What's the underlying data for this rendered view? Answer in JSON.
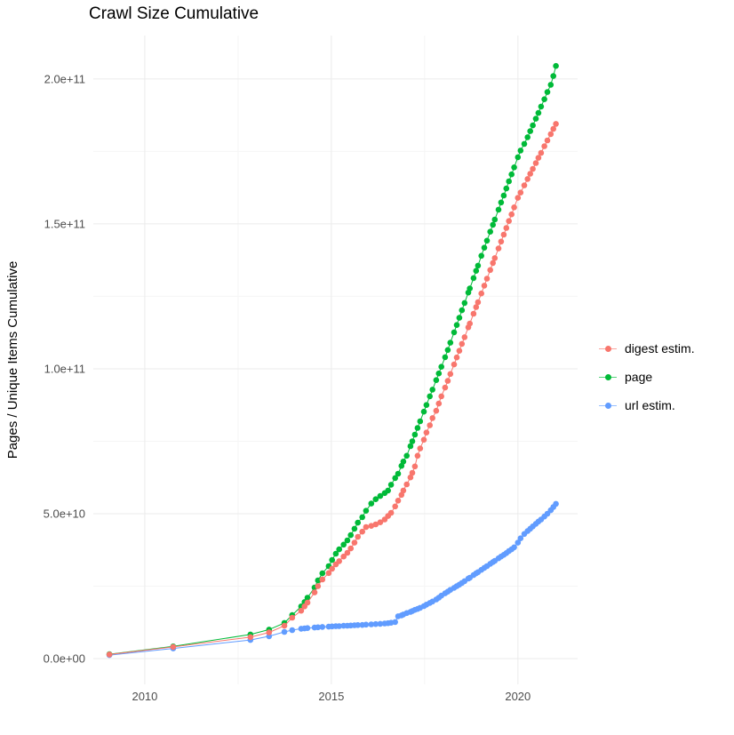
{
  "page": {
    "title": "Crawl Size Cumulative"
  },
  "chart_data": {
    "type": "line",
    "title": "Crawl Size Cumulative",
    "xlabel": "",
    "ylabel": "Pages / Unique Items Cumulative",
    "legend_position": "right",
    "grid": true,
    "values_unit": "1e9 (billions of pages / unique items)",
    "xlim": [
      2008.62,
      2021.6
    ],
    "ylim": [
      -8.9,
      215
    ],
    "x_ticks": {
      "major": [
        2010,
        2015,
        2020
      ],
      "minor": [
        2012.5,
        2017.5
      ],
      "labels": [
        "2010",
        "2015",
        "2020"
      ]
    },
    "y_ticks": {
      "major": [
        0,
        50,
        100,
        150,
        200
      ],
      "minor": [
        25,
        75,
        125,
        175
      ],
      "labels": [
        "0.0e+00",
        "5.0e+10",
        "1.0e+11",
        "1.5e+11",
        "2.0e+11"
      ]
    },
    "x": [
      2009.05,
      2010.76,
      2012.83,
      2013.33,
      2013.74,
      2013.95,
      2014.19,
      2014.28,
      2014.36,
      2014.55,
      2014.64,
      2014.76,
      2014.93,
      2015.02,
      2015.12,
      2015.21,
      2015.33,
      2015.43,
      2015.52,
      2015.62,
      2015.71,
      2015.83,
      2015.93,
      2016.07,
      2016.19,
      2016.31,
      2016.43,
      2016.52,
      2016.6,
      2016.71,
      2016.79,
      2016.88,
      2016.93,
      2017.02,
      2017.12,
      2017.17,
      2017.24,
      2017.31,
      2017.38,
      2017.48,
      2017.55,
      2017.64,
      2017.71,
      2017.81,
      2017.88,
      2017.95,
      2018.05,
      2018.12,
      2018.19,
      2018.29,
      2018.36,
      2018.43,
      2018.5,
      2018.57,
      2018.67,
      2018.71,
      2018.81,
      2018.88,
      2018.93,
      2019.02,
      2019.1,
      2019.17,
      2019.26,
      2019.33,
      2019.38,
      2019.48,
      2019.55,
      2019.62,
      2019.69,
      2019.76,
      2019.83,
      2019.9,
      2020.0,
      2020.07,
      2020.17,
      2020.26,
      2020.33,
      2020.4,
      2020.48,
      2020.55,
      2020.62,
      2020.71,
      2020.79,
      2020.88,
      2020.95,
      2021.02
    ],
    "series": [
      {
        "name": "digest estim.",
        "color": "#F8766D",
        "values": [
          1.4,
          4.0,
          7.4,
          9.0,
          11.3,
          14.1,
          16.5,
          18.0,
          19.3,
          22.8,
          25.0,
          27.3,
          29.5,
          31.0,
          32.5,
          33.6,
          35.2,
          36.5,
          38.0,
          40.0,
          42.0,
          43.8,
          45.4,
          45.8,
          46.3,
          47.0,
          48.0,
          49.2,
          50.3,
          52.5,
          54.5,
          56.5,
          58.0,
          60.1,
          62.5,
          64.1,
          66.3,
          70.0,
          72.5,
          75.5,
          78.0,
          80.5,
          83.0,
          85.5,
          88.0,
          90.5,
          93.5,
          95.8,
          98.2,
          101.5,
          103.9,
          106.2,
          108.6,
          110.9,
          114.3,
          115.6,
          119.0,
          121.3,
          123.0,
          126.0,
          128.7,
          131.1,
          134.1,
          136.5,
          138.2,
          141.5,
          143.9,
          146.3,
          148.6,
          151.0,
          153.3,
          155.7,
          159.0,
          160.8,
          163.3,
          165.5,
          167.3,
          169.0,
          171.0,
          172.8,
          174.5,
          176.8,
          178.8,
          181.0,
          182.8,
          184.5
        ]
      },
      {
        "name": "page",
        "color": "#00BA38",
        "values": [
          1.5,
          4.2,
          8.3,
          10.0,
          12.3,
          15.0,
          18.0,
          19.5,
          21.0,
          24.5,
          27.0,
          29.4,
          31.9,
          34.0,
          36.2,
          37.7,
          39.3,
          40.8,
          42.6,
          44.8,
          46.9,
          48.8,
          51.0,
          53.5,
          55.0,
          56.1,
          57.1,
          58.0,
          60.0,
          62.3,
          63.8,
          66.5,
          68.0,
          70.0,
          73.3,
          75.0,
          77.3,
          79.6,
          81.9,
          85.2,
          87.5,
          90.5,
          92.8,
          96.1,
          98.4,
          100.7,
          104.0,
          106.5,
          109.0,
          112.6,
          115.1,
          117.6,
          120.2,
          122.7,
          126.3,
          127.7,
          131.3,
          133.8,
          135.6,
          139.0,
          141.8,
          144.2,
          147.3,
          149.7,
          151.5,
          154.9,
          157.4,
          159.8,
          162.2,
          164.7,
          167.1,
          169.5,
          173.0,
          175.3,
          177.6,
          179.9,
          182.0,
          184.0,
          186.3,
          188.3,
          190.5,
          193.0,
          195.5,
          198.0,
          201.0,
          204.5
        ]
      },
      {
        "name": "url estim.",
        "color": "#619CFF",
        "values": [
          1.2,
          3.5,
          6.4,
          7.7,
          9.2,
          9.8,
          10.3,
          10.4,
          10.5,
          10.7,
          10.8,
          10.9,
          11.0,
          11.1,
          11.15,
          11.2,
          11.3,
          11.35,
          11.4,
          11.5,
          11.55,
          11.6,
          11.7,
          11.8,
          11.9,
          12.0,
          12.1,
          12.2,
          12.35,
          12.6,
          14.6,
          14.9,
          15.2,
          15.7,
          16.1,
          16.4,
          16.8,
          17.1,
          17.5,
          18.1,
          18.6,
          19.2,
          19.7,
          20.4,
          21.0,
          21.7,
          22.5,
          23.1,
          23.7,
          24.4,
          25.0,
          25.5,
          26.1,
          26.7,
          27.6,
          27.9,
          28.8,
          29.4,
          29.8,
          30.6,
          31.3,
          31.9,
          32.7,
          33.3,
          33.7,
          34.6,
          35.2,
          35.8,
          36.4,
          37.1,
          37.7,
          38.4,
          40.0,
          41.5,
          43.0,
          44.0,
          44.8,
          45.6,
          46.5,
          47.3,
          48.0,
          49.0,
          50.0,
          51.2,
          52.3,
          53.4
        ]
      }
    ],
    "style": {
      "grid_major_color": "#EBEBEB",
      "grid_minor_color": "#F5F5F5",
      "tick_label_color": "#4D4D4D",
      "point_radius": 3.3
    }
  }
}
